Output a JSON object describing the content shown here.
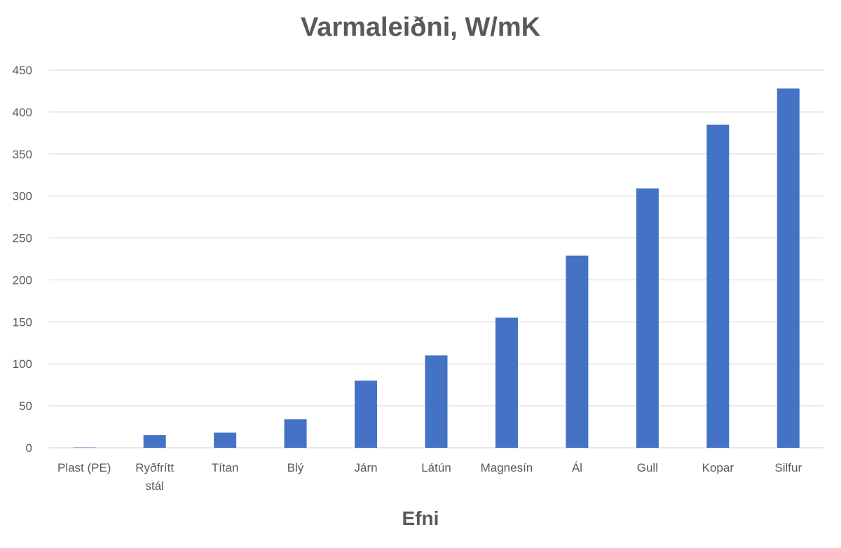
{
  "chart_data": {
    "type": "bar",
    "title": "Varmaleiðni, W/mK",
    "xlabel": "Efni",
    "ylabel": "",
    "categories": [
      "Plast (PE)",
      "Ryðfrítt stál",
      "Títan",
      "Blý",
      "Járn",
      "Látún",
      "Magnesín",
      "Ál",
      "Gull",
      "Kopar",
      "Silfur"
    ],
    "category_lines": [
      [
        "Plast (PE)"
      ],
      [
        "Ryðfrítt",
        "stál"
      ],
      [
        "Títan"
      ],
      [
        "Blý"
      ],
      [
        "Járn"
      ],
      [
        "Látún"
      ],
      [
        "Magnesín"
      ],
      [
        "Ál"
      ],
      [
        "Gull"
      ],
      [
        "Kopar"
      ],
      [
        "Silfur"
      ]
    ],
    "values": [
      0.4,
      15,
      18,
      34,
      80,
      110,
      155,
      229,
      309,
      385,
      428
    ],
    "ylim": [
      0,
      450
    ],
    "yticks": [
      0,
      50,
      100,
      150,
      200,
      250,
      300,
      350,
      400,
      450
    ],
    "grid": true,
    "legend": "none",
    "bar_color": "#4472c4"
  }
}
